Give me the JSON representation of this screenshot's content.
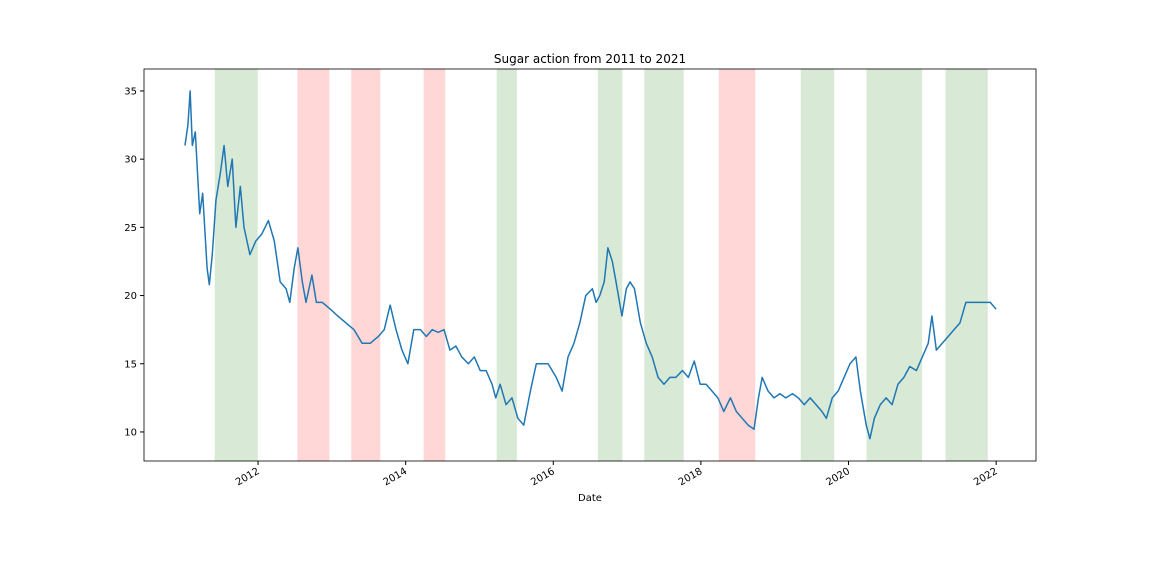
{
  "chart_data": {
    "type": "line",
    "title": "Sugar action from 2011 to 2021",
    "x_label": "Date",
    "color": "#1f77b4",
    "x": [
      2011.01,
      2011.05,
      2011.08,
      2011.11,
      2011.15,
      2011.19,
      2011.21,
      2011.25,
      2011.31,
      2011.34,
      2011.38,
      2011.43,
      2011.49,
      2011.54,
      2011.59,
      2011.65,
      2011.7,
      2011.76,
      2011.81,
      2011.89,
      2011.97,
      2012.05,
      2012.14,
      2012.22,
      2012.3,
      2012.38,
      2012.43,
      2012.49,
      2012.54,
      2012.6,
      2012.65,
      2012.73,
      2012.79,
      2012.87,
      2012.98,
      2013.08,
      2013.19,
      2013.3,
      2013.41,
      2013.52,
      2013.63,
      2013.71,
      2013.79,
      2013.87,
      2013.95,
      2014.03,
      2014.11,
      2014.2,
      2014.28,
      2014.36,
      2014.44,
      2014.52,
      2014.6,
      2014.68,
      2014.76,
      2014.85,
      2014.93,
      2015.01,
      2015.09,
      2015.17,
      2015.22,
      2015.28,
      2015.36,
      2015.44,
      2015.52,
      2015.6,
      2015.69,
      2015.77,
      2015.85,
      2015.93,
      2016.04,
      2016.12,
      2016.2,
      2016.28,
      2016.36,
      2016.44,
      2016.53,
      2016.58,
      2016.63,
      2016.69,
      2016.74,
      2016.8,
      2016.85,
      2016.93,
      2016.99,
      2017.04,
      2017.1,
      2017.18,
      2017.26,
      2017.34,
      2017.42,
      2017.5,
      2017.58,
      2017.66,
      2017.75,
      2017.83,
      2017.91,
      2017.99,
      2018.07,
      2018.15,
      2018.23,
      2018.31,
      2018.4,
      2018.48,
      2018.56,
      2018.64,
      2018.72,
      2018.78,
      2018.83,
      2018.91,
      2018.99,
      2019.07,
      2019.15,
      2019.24,
      2019.32,
      2019.4,
      2019.48,
      2019.56,
      2019.64,
      2019.7,
      2019.78,
      2019.86,
      2019.94,
      2020.02,
      2020.1,
      2020.16,
      2020.24,
      2020.29,
      2020.35,
      2020.43,
      2020.51,
      2020.59,
      2020.67,
      2020.75,
      2020.83,
      2020.92,
      2021.0,
      2021.08,
      2021.13,
      2021.19,
      2021.27,
      2021.35,
      2021.43,
      2021.51,
      2021.59,
      2021.68,
      2021.76,
      2021.84,
      2021.92,
      2022.0
    ],
    "values": [
      31,
      32.5,
      35,
      31,
      32,
      28,
      26,
      27.5,
      22,
      20.8,
      23,
      27,
      29,
      31,
      28,
      30,
      25,
      28,
      25,
      23,
      24,
      24.5,
      25.5,
      24,
      21,
      20.5,
      19.5,
      22,
      23.5,
      21,
      19.5,
      21.5,
      19.5,
      19.5,
      19,
      18.5,
      18,
      17.5,
      16.5,
      16.5,
      17,
      17.5,
      19.3,
      17.5,
      16,
      15,
      17.5,
      17.5,
      17,
      17.5,
      17.3,
      17.5,
      16,
      16.3,
      15.5,
      15,
      15.5,
      14.5,
      14.5,
      13.5,
      12.5,
      13.5,
      12,
      12.5,
      11,
      10.5,
      13,
      15,
      15,
      15,
      14,
      13,
      15.5,
      16.5,
      18,
      20,
      20.5,
      19.5,
      20,
      21,
      23.5,
      22.5,
      21,
      18.5,
      20.5,
      21,
      20.5,
      18,
      16.5,
      15.5,
      14,
      13.5,
      14,
      14,
      14.5,
      14,
      15.2,
      13.5,
      13.5,
      13,
      12.5,
      11.5,
      12.5,
      11.5,
      11,
      10.5,
      10.2,
      12.5,
      14,
      13,
      12.5,
      12.8,
      12.5,
      12.8,
      12.5,
      12,
      12.5,
      12,
      11.5,
      11,
      12.5,
      13,
      14,
      15,
      15.5,
      13,
      10.5,
      9.5,
      11,
      12,
      12.5,
      12,
      13.5,
      14,
      14.8,
      14.5,
      15.5,
      16.5,
      18.5,
      16,
      16.5,
      17,
      17.5,
      18,
      19.5,
      19.5,
      19.5,
      19.5,
      19.5,
      19
    ],
    "spans": [
      {
        "start": 2011.42,
        "end": 2011.99,
        "color": "#d8ead6"
      },
      {
        "start": 2012.54,
        "end": 2012.96,
        "color": "#ffd7d7"
      },
      {
        "start": 2013.27,
        "end": 2013.65,
        "color": "#ffd7d7"
      },
      {
        "start": 2014.25,
        "end": 2014.53,
        "color": "#ffd7d7"
      },
      {
        "start": 2015.24,
        "end": 2015.5,
        "color": "#d8ead6"
      },
      {
        "start": 2016.61,
        "end": 2016.93,
        "color": "#d8ead6"
      },
      {
        "start": 2017.24,
        "end": 2017.76,
        "color": "#d8ead6"
      },
      {
        "start": 2018.25,
        "end": 2018.73,
        "color": "#ffd7d7"
      },
      {
        "start": 2019.36,
        "end": 2019.8,
        "color": "#d8ead6"
      },
      {
        "start": 2020.25,
        "end": 2020.99,
        "color": "#d8ead6"
      },
      {
        "start": 2021.32,
        "end": 2021.88,
        "color": "#d8ead6"
      }
    ],
    "xlim": [
      2010.455,
      2022.54
    ],
    "xticks": [
      2012,
      2014,
      2016,
      2018,
      2020,
      2022
    ],
    "ylim": [
      7.87,
      36.61
    ],
    "yticks": [
      10,
      15,
      20,
      25,
      30,
      35
    ]
  }
}
